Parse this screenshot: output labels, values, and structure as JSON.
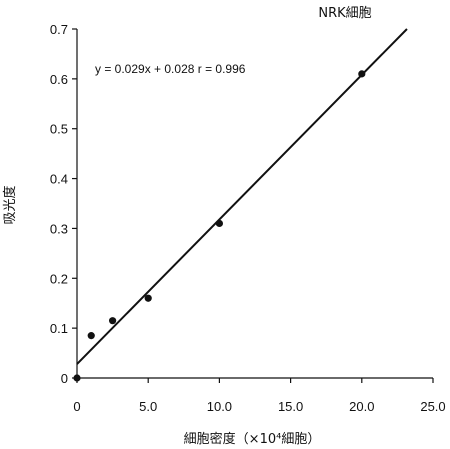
{
  "chart_data": {
    "type": "scatter",
    "title": "NRK細胞",
    "xlabel": "細胞密度（×10⁴細胞）",
    "ylabel": "吸光度",
    "xlim": [
      0,
      25
    ],
    "ylim": [
      0,
      0.7
    ],
    "x_ticks": [
      "0",
      "5.0",
      "10.0",
      "15.0",
      "20.0",
      "25.0"
    ],
    "y_ticks": [
      "0",
      "0.1",
      "0.2",
      "0.3",
      "0.4",
      "0.5",
      "0.6",
      "0.7"
    ],
    "annotation": "y = 0.029x + 0.028    r = 0.996",
    "series": [
      {
        "points": [
          {
            "x": 0,
            "y": 0
          },
          {
            "x": 1.0,
            "y": 0.085
          },
          {
            "x": 2.5,
            "y": 0.115
          },
          {
            "x": 5.0,
            "y": 0.16
          },
          {
            "x": 10.0,
            "y": 0.31
          },
          {
            "x": 20.0,
            "y": 0.61
          }
        ]
      }
    ],
    "regression": {
      "slope": 0.029,
      "intercept": 0.028
    },
    "grid": false,
    "color": "#111111"
  }
}
